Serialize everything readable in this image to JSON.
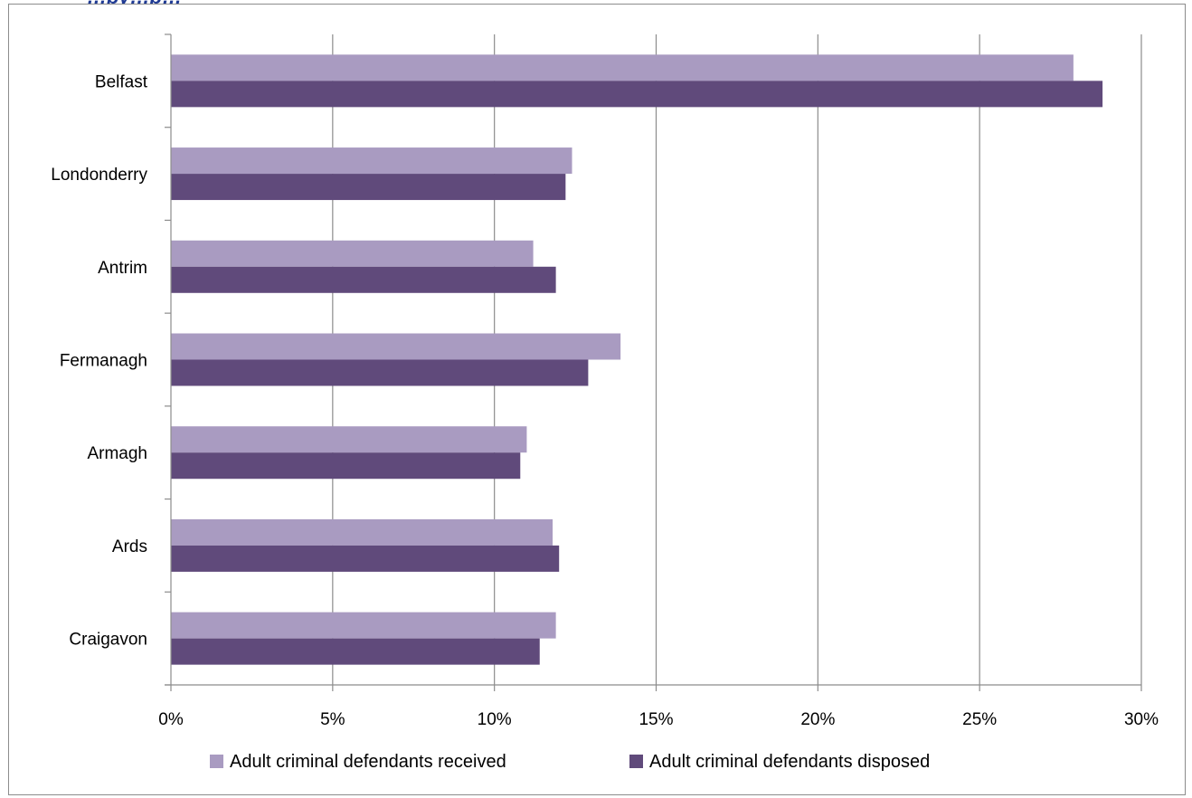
{
  "title_fragment": "…by…p…",
  "chart_data": {
    "type": "bar",
    "orientation": "horizontal",
    "categories": [
      "Belfast",
      "Londonderry",
      "Antrim",
      "Fermanagh",
      "Armagh",
      "Ards",
      "Craigavon"
    ],
    "series": [
      {
        "name": "Adult criminal defendants received",
        "color": "#a99bc1",
        "values": [
          27.9,
          12.4,
          11.2,
          13.9,
          11.0,
          11.8,
          11.9
        ]
      },
      {
        "name": "Adult criminal defendants disposed",
        "color": "#604a7b",
        "values": [
          28.8,
          12.2,
          11.9,
          12.9,
          10.8,
          12.0,
          11.4
        ]
      }
    ],
    "x_ticks": [
      "0%",
      "5%",
      "10%",
      "15%",
      "20%",
      "25%",
      "30%"
    ],
    "xlim": [
      0,
      30
    ],
    "unit": "%",
    "grid": "vertical",
    "legend_position": "bottom"
  }
}
